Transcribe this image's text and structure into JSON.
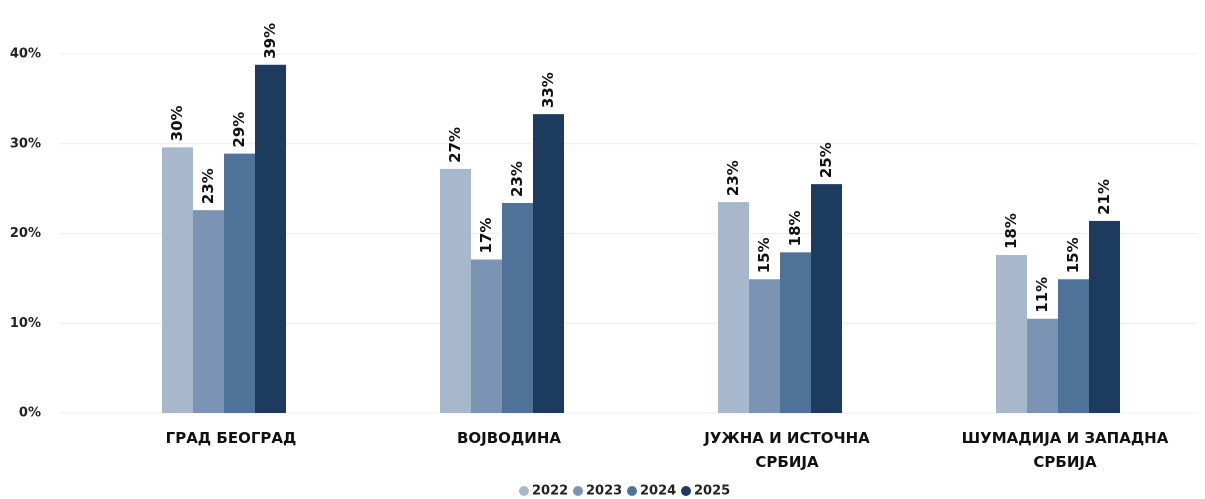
{
  "chart_data": {
    "type": "bar",
    "categories": [
      "ГРАД БЕОГРАД",
      "ВОЈВОДИНА",
      "ЈУЖНА И ИСТОЧНА\nСРБИЈА",
      "ШУМАДИЈА И ЗАПАДНА\nСРБИЈА"
    ],
    "series": [
      {
        "name": "2022",
        "color": "#a7b8cc",
        "values": [
          29.6,
          27.2,
          23.5,
          17.6
        ],
        "value_labels": [
          "30%",
          "27%",
          "23%",
          "18%"
        ]
      },
      {
        "name": "2023",
        "color": "#7b94b3",
        "values": [
          22.6,
          17.1,
          14.9,
          10.5
        ],
        "value_labels": [
          "23%",
          "17%",
          "15%",
          "11%"
        ]
      },
      {
        "name": "2024",
        "color": "#4f7299",
        "values": [
          28.9,
          23.4,
          17.9,
          14.9
        ],
        "value_labels": [
          "29%",
          "23%",
          "18%",
          "15%"
        ]
      },
      {
        "name": "2025",
        "color": "#1d3a5f",
        "values": [
          38.8,
          33.3,
          25.5,
          21.4
        ],
        "value_labels": [
          "39%",
          "33%",
          "25%",
          "21%"
        ]
      }
    ],
    "ylim": [
      0,
      40
    ],
    "yticks": [
      {
        "value": 0,
        "label": "0%"
      },
      {
        "value": 10,
        "label": "10%"
      },
      {
        "value": 20,
        "label": "20%"
      },
      {
        "value": 30,
        "label": "30%"
      },
      {
        "value": 40,
        "label": "40%"
      }
    ],
    "grid": true,
    "legend": "bottom"
  }
}
